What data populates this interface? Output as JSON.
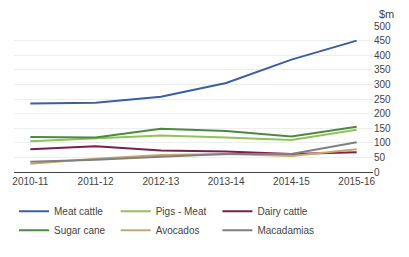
{
  "chart_data": {
    "type": "line",
    "categories": [
      "2010-11",
      "2011-12",
      "2012-13",
      "2013-14",
      "2014-15",
      "2015-16"
    ],
    "series": [
      {
        "name": "Meat cattle",
        "color": "#3A5FA8",
        "values": [
          235,
          237,
          258,
          305,
          385,
          450
        ]
      },
      {
        "name": "Pigs - Meat",
        "color": "#92C25A",
        "values": [
          105,
          115,
          125,
          118,
          110,
          145
        ]
      },
      {
        "name": "Dairy cattle",
        "color": "#7B1F4E",
        "values": [
          78,
          88,
          74,
          70,
          62,
          68
        ]
      },
      {
        "name": "Sugar cane",
        "color": "#4A8C3F",
        "values": [
          120,
          118,
          148,
          140,
          122,
          155
        ]
      },
      {
        "name": "Avocados",
        "color": "#C8A86A",
        "values": [
          28,
          45,
          58,
          62,
          55,
          78
        ]
      },
      {
        "name": "Macadamias",
        "color": "#808080",
        "values": [
          35,
          42,
          52,
          62,
          62,
          102
        ]
      }
    ],
    "ylabel": "$m",
    "ylim": [
      0,
      500
    ],
    "yticks": [
      0,
      50,
      100,
      150,
      200,
      250,
      300,
      350,
      400,
      450,
      500
    ],
    "grid": true,
    "legend": "bottom"
  }
}
